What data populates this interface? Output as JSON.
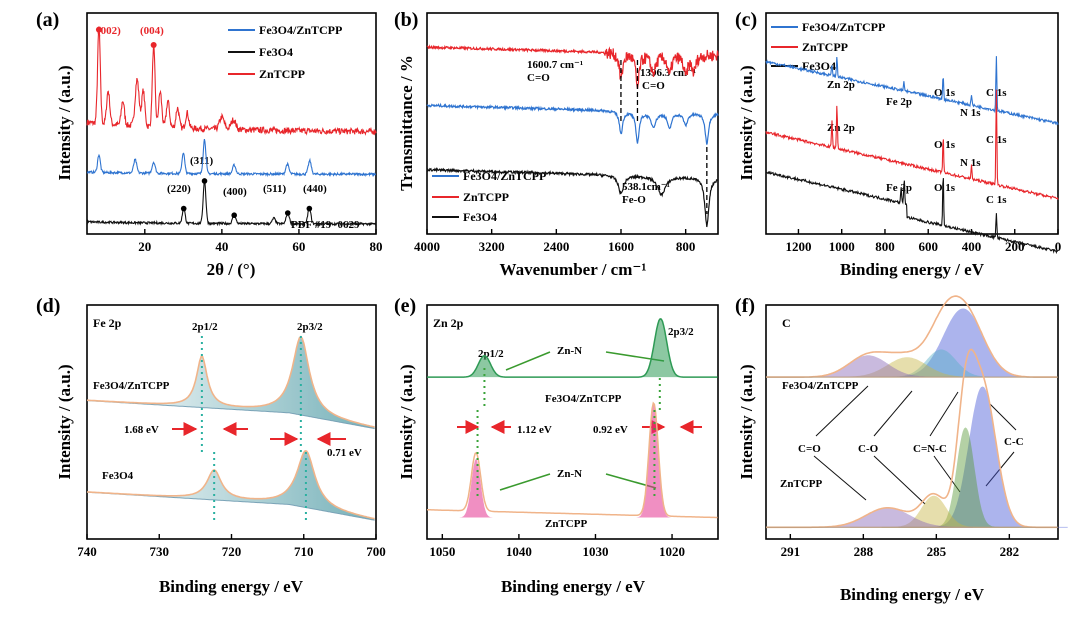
{
  "colors": {
    "red": "#e8262b",
    "blue": "#2f74d0",
    "black": "#111111",
    "peach": "#f0b48a",
    "teal": "#3a8f9a",
    "green": "#2e9a55",
    "pink": "#e3338f",
    "arrow": "#e8262b",
    "lime": "#3a9a2e"
  },
  "chart_data": [
    {
      "panel": "(a)",
      "type": "line",
      "xlabel": "2θ / (°)",
      "ylabel": "Intensity / (a.u.)",
      "xlim": [
        5,
        80
      ],
      "xticks": [
        20,
        40,
        60,
        80
      ],
      "legend": [
        "Fe3O4/ZnTCPP",
        "Fe3O4",
        "ZnTCPP"
      ],
      "legend_position": "top-right",
      "series": [
        {
          "name": "ZnTCPP",
          "color": "red",
          "offset": 9.2,
          "peaks": [
            [
              8.1,
              8.7,
              0.35
            ],
            [
              10.5,
              3.0,
              0.4
            ],
            [
              14.3,
              2.2,
              0.4
            ],
            [
              18.0,
              4.2,
              0.5
            ],
            [
              19.6,
              3.2,
              0.4
            ],
            [
              22.3,
              7.3,
              0.35
            ],
            [
              24.0,
              3.2,
              0.4
            ],
            [
              26.0,
              2.4,
              0.4
            ],
            [
              28.5,
              1.8,
              0.4
            ],
            [
              31.0,
              1.4,
              0.4
            ],
            [
              40.0,
              1.1,
              0.6
            ],
            [
              43.0,
              0.9,
              0.6
            ]
          ]
        },
        {
          "name": "Fe3O4/ZnTCPP",
          "color": "blue",
          "offset": 5.4,
          "peaks": [
            [
              8.1,
              1.6,
              0.35
            ],
            [
              17.5,
              1.2,
              0.4
            ],
            [
              22.3,
              1.0,
              0.4
            ],
            [
              30.0,
              1.9,
              0.35
            ],
            [
              35.5,
              3.1,
              0.35
            ],
            [
              43.2,
              0.8,
              0.4
            ],
            [
              57.0,
              0.9,
              0.4
            ],
            [
              62.8,
              1.2,
              0.4
            ]
          ]
        },
        {
          "name": "Fe3O4",
          "color": "black",
          "offset": 0.9,
          "peaks": [
            [
              30.1,
              1.4,
              0.35
            ],
            [
              35.5,
              3.9,
              0.35
            ],
            [
              43.2,
              0.8,
              0.4
            ],
            [
              53.5,
              0.5,
              0.4
            ],
            [
              57.1,
              1.0,
              0.4
            ],
            [
              62.7,
              1.4,
              0.4
            ]
          ]
        }
      ],
      "annotations": [
        {
          "text": "(002)",
          "x": 8.1,
          "color": "red"
        },
        {
          "text": "(004)",
          "x": 22.3,
          "color": "red"
        },
        {
          "text": "(311)",
          "x": 35.5
        },
        {
          "text": "(220)",
          "x": 30.1
        },
        {
          "text": "(400)",
          "x": 43.2
        },
        {
          "text": "(511)",
          "x": 57.1
        },
        {
          "text": "(440)",
          "x": 62.7
        },
        {
          "text": "PDF #19−0629"
        }
      ]
    },
    {
      "panel": "(b)",
      "type": "line",
      "xlabel": "Wavenumber / cm⁻¹",
      "ylabel": "Transmittance / %",
      "xlim": [
        4000,
        400
      ],
      "xticks": [
        4000,
        3200,
        2400,
        1600,
        800
      ],
      "legend": [
        "Fe3O4/ZnTCPP",
        "ZnTCPP",
        "Fe3O4"
      ],
      "legend_position": "bottom-left",
      "series": [
        {
          "name": "ZnTCPP",
          "color": "red",
          "level": 9.3,
          "dips": [
            [
              1600,
              1.3,
              25
            ],
            [
              1396,
              1.7,
              25
            ],
            [
              1200,
              0.9,
              40
            ],
            [
              1000,
              1.0,
              30
            ],
            [
              800,
              1.0,
              30
            ],
            [
              700,
              0.8,
              30
            ]
          ]
        },
        {
          "name": "Fe3O4/ZnTCPP",
          "color": "blue",
          "level": 6.4,
          "dips": [
            [
              1600,
              1.1,
              25
            ],
            [
              1396,
              1.5,
              25
            ],
            [
              1200,
              0.7,
              40
            ],
            [
              1000,
              0.8,
              30
            ],
            [
              800,
              0.6,
              30
            ],
            [
              538,
              1.5,
              25
            ]
          ]
        },
        {
          "name": "Fe3O4",
          "color": "black",
          "level": 3.2,
          "dips": [
            [
              1600,
              0.9,
              40
            ],
            [
              1100,
              0.9,
              60
            ],
            [
              538,
              2.4,
              30
            ]
          ]
        }
      ],
      "annotations": [
        {
          "text": "1600.7 cm⁻¹",
          "x": 1600.7
        },
        {
          "text": "C=O",
          "x": 1600.7
        },
        {
          "text": "1396.3 cm⁻¹",
          "x": 1396.3
        },
        {
          "text": "C=O",
          "x": 1396.3
        },
        {
          "text": "538.1cm⁻¹",
          "x": 538.1
        },
        {
          "text": "Fe-O",
          "x": 538.1
        }
      ]
    },
    {
      "panel": "(c)",
      "type": "line",
      "xlabel": "Binding energy / eV",
      "ylabel": "Intensity / (a.u.)",
      "xlim": [
        1350,
        0
      ],
      "xticks": [
        1200,
        1000,
        800,
        600,
        400,
        200,
        0
      ],
      "legend": [
        "Fe3O4/ZnTCPP",
        "ZnTCPP",
        "Fe3O4"
      ],
      "legend_position": "top-left",
      "series": [
        {
          "name": "Fe3O4/ZnTCPP",
          "color": "blue",
          "base": [
            7.8,
            5.0
          ],
          "peaks": [
            [
              1022,
              0.9
            ],
            [
              1045,
              0.5
            ],
            [
              712,
              0.4
            ],
            [
              531,
              1.1
            ],
            [
              400,
              0.5
            ],
            [
              285,
              2.5
            ]
          ]
        },
        {
          "name": "ZnTCPP",
          "color": "red",
          "base": [
            4.6,
            1.6
          ],
          "peaks": [
            [
              1022,
              2.0
            ],
            [
              1045,
              1.2
            ],
            [
              531,
              1.6
            ],
            [
              400,
              0.6
            ],
            [
              285,
              4.3
            ]
          ]
        },
        {
          "name": "Fe3O4",
          "color": "black",
          "base": [
            2.8,
            -0.2
          ],
          "peaks": [
            [
              711,
              1.1
            ],
            [
              725,
              0.7
            ],
            [
              531,
              2.4
            ],
            [
              285,
              1.1
            ]
          ]
        }
      ],
      "annotations": [
        "Zn 2p",
        "Fe 2p",
        "O 1s",
        "N 1s",
        "C 1s",
        "Zn 2p",
        "O 1s",
        "N 1s",
        "C 1s",
        "Fe 2p",
        "O 1s",
        "C 1s"
      ]
    },
    {
      "panel": "(d)",
      "type": "line",
      "title": "Fe 2p",
      "xlabel": "Binding energy / eV",
      "ylabel": "Intensity / (a.u.)",
      "xlim": [
        740,
        700
      ],
      "xticks": [
        740,
        730,
        720,
        710,
        700
      ],
      "series": [
        {
          "name": "Fe3O4/ZnTCPP",
          "peaks": [
            [
              724.1,
              2.6,
              0.9
            ],
            [
              710.4,
              4.0,
              1.4
            ]
          ],
          "offset": 6.2
        },
        {
          "name": "Fe3O4",
          "peaks": [
            [
              722.4,
              1.5,
              1.2
            ],
            [
              709.7,
              2.9,
              1.5
            ]
          ],
          "offset": 1.5
        }
      ],
      "peak_labels": [
        "2p1/2",
        "2p3/2"
      ],
      "annotations": [
        {
          "text": "1.68 eV",
          "x": 723.2
        },
        {
          "text": "0.71 eV",
          "x": 710.0
        },
        {
          "text": "Fe3O4/ZnTCPP"
        },
        {
          "text": "Fe3O4"
        }
      ]
    },
    {
      "panel": "(e)",
      "type": "line",
      "title": "Zn 2p",
      "xlabel": "Binding energy / eV",
      "ylabel": "Intensity / (a.u.)",
      "xlim": [
        1052,
        1014
      ],
      "xticks": [
        1050,
        1040,
        1030,
        1020
      ],
      "series": [
        {
          "name": "Fe3O4/ZnTCPP",
          "peaks": [
            [
              1044.5,
              1.1,
              0.8
            ],
            [
              1021.5,
              3.0,
              0.8
            ]
          ],
          "offset": 8.3
        },
        {
          "name": "ZnTCPP",
          "peaks": [
            [
              1045.6,
              3.0,
              0.6
            ],
            [
              1022.4,
              5.8,
              0.6
            ]
          ],
          "offset": 1.1
        }
      ],
      "peak_labels": [
        "2p1/2",
        "2p3/2"
      ],
      "annotations": [
        {
          "text": "Zn-N"
        },
        {
          "text": "Zn-N"
        },
        {
          "text": "1.12 eV",
          "x": 1045.0
        },
        {
          "text": "0.92 eV",
          "x": 1022.0
        },
        {
          "text": "Fe3O4/ZnTCPP"
        },
        {
          "text": "ZnTCPP"
        }
      ]
    },
    {
      "panel": "(f)",
      "type": "line",
      "title": "C",
      "xlabel": "Binding energy / eV",
      "ylabel": "Intensity / (a.u.)",
      "xlim": [
        292,
        280
      ],
      "xticks": [
        291,
        288,
        285,
        282
      ],
      "series": [
        {
          "name": "Fe3O4/ZnTCPP",
          "offset": 8.3,
          "components": [
            [
              "C-C",
              283.9,
              3.5,
              0.8
            ],
            [
              "C=N-C",
              284.8,
              1.4,
              0.6
            ],
            [
              "C-O",
              286.2,
              1.0,
              0.8
            ],
            [
              "C=O",
              287.8,
              1.1,
              0.8
            ]
          ]
        },
        {
          "name": "ZnTCPP",
          "offset": 0.6,
          "components": [
            [
              "C-C",
              283.1,
              7.2,
              0.55
            ],
            [
              "C=N-C",
              283.8,
              5.1,
              0.35
            ],
            [
              "C-O",
              285.1,
              1.6,
              0.5
            ],
            [
              "C=O",
              287.0,
              1.0,
              0.9
            ]
          ]
        }
      ],
      "labels": [
        "C=O",
        "C-O",
        "C=N-C",
        "C-C"
      ],
      "annotations": [
        {
          "text": "Fe3O4/ZnTCPP"
        },
        {
          "text": "ZnTCPP"
        }
      ]
    }
  ]
}
